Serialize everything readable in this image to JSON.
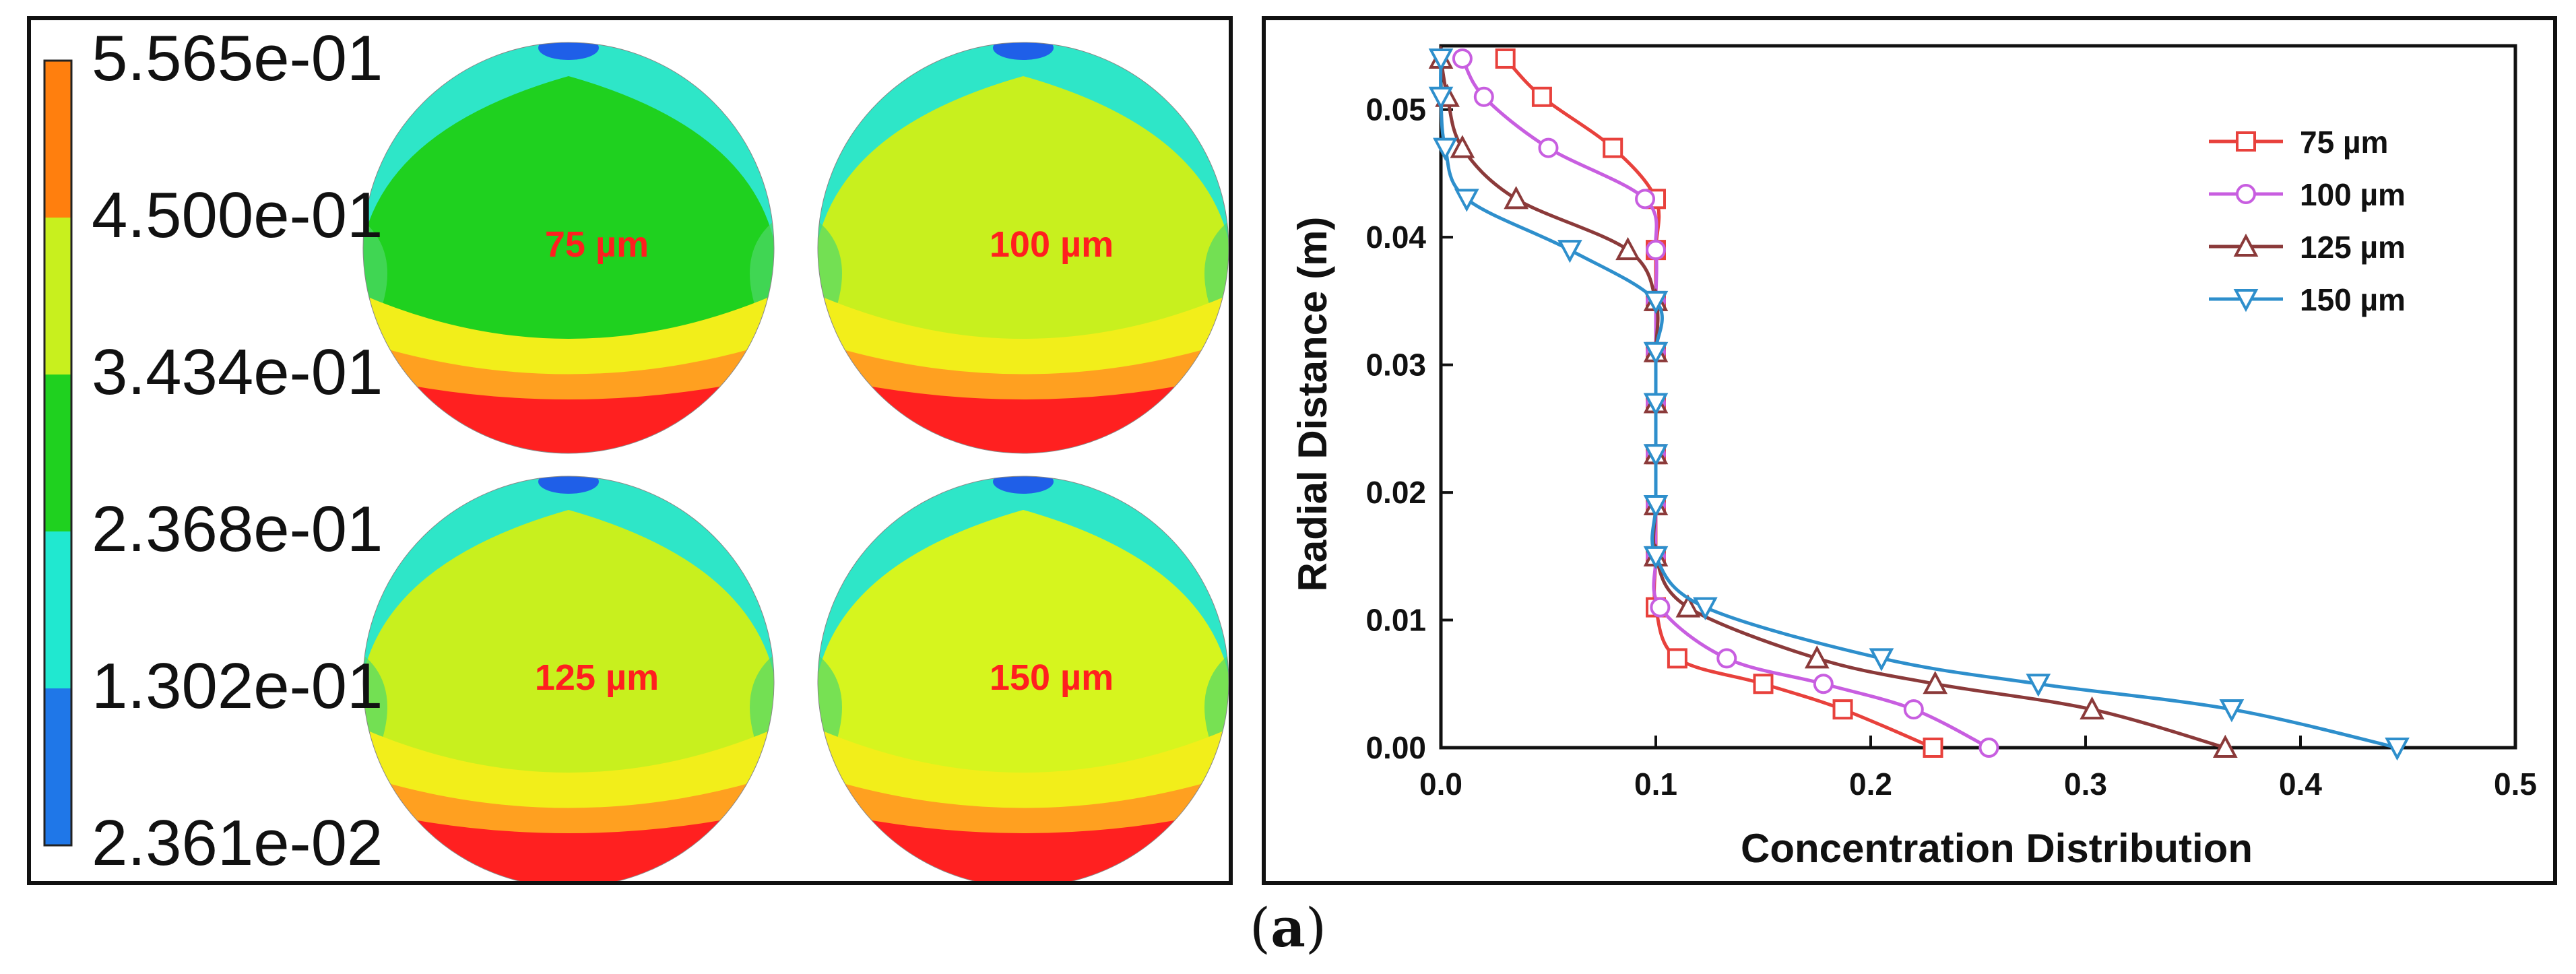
{
  "colorbar": {
    "labels": [
      "5.565e-01",
      "4.500e-01",
      "3.434e-01",
      "2.368e-01",
      "1.302e-01",
      "2.361e-02"
    ],
    "colors": [
      "#ff7f0e",
      "#c8f01e",
      "#1fd11f",
      "#20e8d0",
      "#1f77e8"
    ]
  },
  "contours": [
    {
      "label": "75 µm",
      "body_color": "#1fd11f"
    },
    {
      "label": "100 µm",
      "body_color": "#c8f01e"
    },
    {
      "label": "125 µm",
      "body_color": "#c8f01e"
    },
    {
      "label": "150 µm",
      "body_color": "#d6f51e"
    }
  ],
  "chart_data": {
    "type": "line",
    "xlabel": "Concentration Distribution",
    "ylabel": "Radial Distance (m)",
    "xlim": [
      0.0,
      0.5
    ],
    "ylim": [
      0.0,
      0.055
    ],
    "xticks": [
      "0.0",
      "0.1",
      "0.2",
      "0.3",
      "0.4",
      "0.5"
    ],
    "yticks": [
      "0.00",
      "0.01",
      "0.02",
      "0.03",
      "0.04",
      "0.05"
    ],
    "legend_position": "top-right",
    "series": [
      {
        "name": "75 µm",
        "color": "#e8413c",
        "marker": "square",
        "points": [
          [
            0.229,
            0.0
          ],
          [
            0.187,
            0.003
          ],
          [
            0.15,
            0.005
          ],
          [
            0.11,
            0.007
          ],
          [
            0.1,
            0.011
          ],
          [
            0.1,
            0.015
          ],
          [
            0.1,
            0.019
          ],
          [
            0.1,
            0.023
          ],
          [
            0.1,
            0.027
          ],
          [
            0.1,
            0.031
          ],
          [
            0.1,
            0.035
          ],
          [
            0.1,
            0.039
          ],
          [
            0.1,
            0.043
          ],
          [
            0.08,
            0.047
          ],
          [
            0.047,
            0.051
          ],
          [
            0.03,
            0.054
          ]
        ]
      },
      {
        "name": "100 µm",
        "color": "#c85ee0",
        "marker": "circle",
        "points": [
          [
            0.255,
            0.0
          ],
          [
            0.22,
            0.003
          ],
          [
            0.178,
            0.005
          ],
          [
            0.133,
            0.007
          ],
          [
            0.102,
            0.011
          ],
          [
            0.1,
            0.015
          ],
          [
            0.1,
            0.019
          ],
          [
            0.1,
            0.023
          ],
          [
            0.1,
            0.027
          ],
          [
            0.1,
            0.031
          ],
          [
            0.1,
            0.035
          ],
          [
            0.1,
            0.039
          ],
          [
            0.095,
            0.043
          ],
          [
            0.05,
            0.047
          ],
          [
            0.02,
            0.051
          ],
          [
            0.01,
            0.054
          ]
        ]
      },
      {
        "name": "125 µm",
        "color": "#8b3a3a",
        "marker": "triangle-up",
        "points": [
          [
            0.365,
            0.0
          ],
          [
            0.303,
            0.003
          ],
          [
            0.23,
            0.005
          ],
          [
            0.175,
            0.007
          ],
          [
            0.115,
            0.011
          ],
          [
            0.1,
            0.015
          ],
          [
            0.1,
            0.019
          ],
          [
            0.1,
            0.023
          ],
          [
            0.1,
            0.027
          ],
          [
            0.1,
            0.031
          ],
          [
            0.1,
            0.035
          ],
          [
            0.087,
            0.039
          ],
          [
            0.035,
            0.043
          ],
          [
            0.01,
            0.047
          ],
          [
            0.003,
            0.051
          ],
          [
            0.0,
            0.054
          ]
        ]
      },
      {
        "name": "150 µm",
        "color": "#2e8fcc",
        "marker": "triangle-down",
        "points": [
          [
            0.445,
            0.0
          ],
          [
            0.368,
            0.003
          ],
          [
            0.278,
            0.005
          ],
          [
            0.205,
            0.007
          ],
          [
            0.123,
            0.011
          ],
          [
            0.1,
            0.015
          ],
          [
            0.1,
            0.019
          ],
          [
            0.1,
            0.023
          ],
          [
            0.1,
            0.027
          ],
          [
            0.1,
            0.031
          ],
          [
            0.1,
            0.035
          ],
          [
            0.06,
            0.039
          ],
          [
            0.012,
            0.043
          ],
          [
            0.002,
            0.047
          ],
          [
            0.0,
            0.051
          ],
          [
            0.0,
            0.054
          ]
        ]
      }
    ]
  },
  "caption": {
    "letter": "a"
  }
}
